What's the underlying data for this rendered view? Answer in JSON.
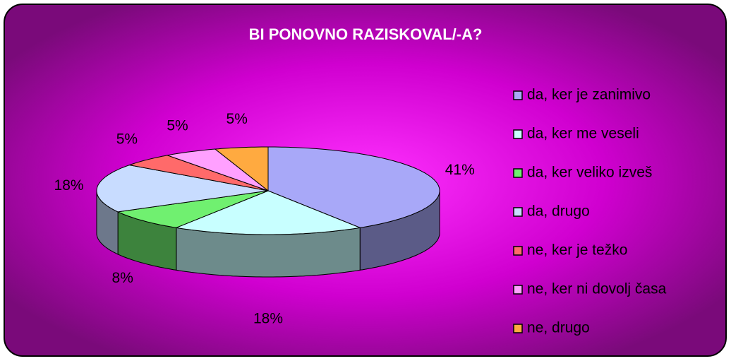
{
  "chart_data": {
    "type": "pie",
    "title": "BI PONOVNO RAZISKOVAL/-A?",
    "categories": [
      "da, ker je zanimivo",
      "da, ker me veseli",
      "da, ker veliko izveš",
      "da, drugo",
      "ne, ker je težko",
      "ne, ker ni dovolj časa",
      "ne, drugo"
    ],
    "values": [
      41,
      18,
      8,
      18,
      5,
      5,
      5
    ],
    "value_labels": [
      "41%",
      "18%",
      "8%",
      "18%",
      "5%",
      "5%",
      "5%"
    ],
    "colors": [
      "#a8a8f8",
      "#c8ffff",
      "#70f070",
      "#c8dcff",
      "#ff6a6a",
      "#ffa0ff",
      "#ffaa40"
    ],
    "legend": "right"
  }
}
